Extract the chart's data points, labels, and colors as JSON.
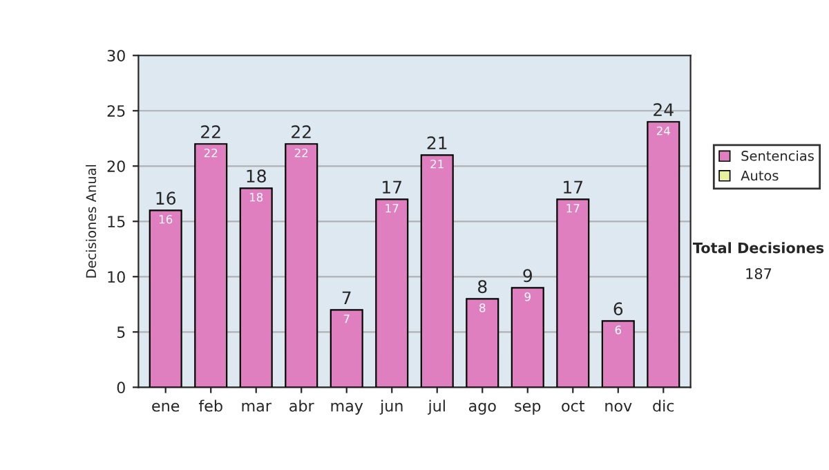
{
  "chart_data": {
    "type": "bar",
    "stacked": true,
    "ylabel": "Decisiones Anual",
    "categories": [
      "ene",
      "feb",
      "mar",
      "abr",
      "may",
      "jun",
      "jul",
      "ago",
      "sep",
      "oct",
      "nov",
      "dic"
    ],
    "series": [
      {
        "name": "Sentencias",
        "color": "#e07fc0",
        "values": [
          16,
          22,
          18,
          22,
          7,
          17,
          21,
          8,
          9,
          17,
          6,
          24
        ],
        "value_labels": [
          "16",
          "22",
          "18",
          "22",
          "7",
          "17",
          "21",
          "8",
          "9",
          "17",
          "6",
          "24"
        ]
      },
      {
        "name": "Autos",
        "color": "#e8f0a0",
        "values": [
          0,
          0,
          0,
          0,
          0,
          0,
          0,
          0,
          0,
          0,
          0,
          0
        ]
      }
    ],
    "totals": [
      "16",
      "22",
      "18",
      "22",
      "7",
      "17",
      "21",
      "8",
      "9",
      "17",
      "6",
      "24"
    ],
    "ylim": [
      0,
      30
    ],
    "yticks": [
      0,
      5,
      10,
      15,
      20,
      25,
      30
    ],
    "grid": "y",
    "legend": "right",
    "annotations": [
      "Total Decisiones",
      "187"
    ]
  }
}
